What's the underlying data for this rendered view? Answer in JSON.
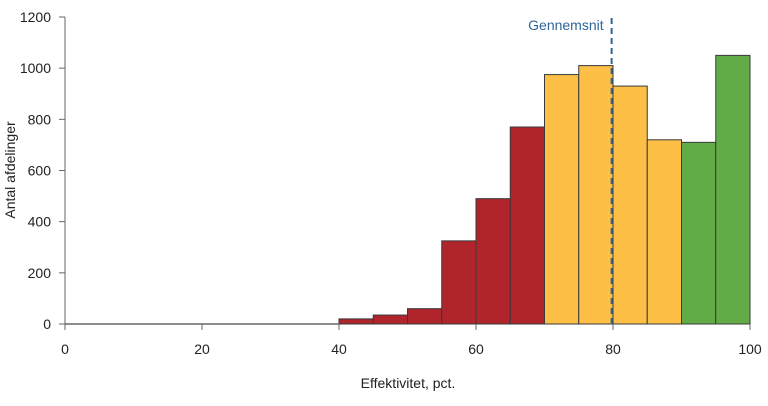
{
  "chart_data": {
    "type": "bar",
    "subtype": "histogram",
    "title": "",
    "xlabel": "Effektivitet, pct.",
    "ylabel": "Antal afdelinger",
    "xlim": [
      0,
      100
    ],
    "ylim": [
      0,
      1200
    ],
    "x_ticks": [
      0,
      20,
      40,
      60,
      80,
      100
    ],
    "y_ticks": [
      0,
      200,
      400,
      600,
      800,
      1000,
      1200
    ],
    "grid": false,
    "legend": null,
    "bin_width": 5,
    "bins": [
      {
        "start": 40,
        "end": 45,
        "value": 20,
        "color": "#b0252c"
      },
      {
        "start": 45,
        "end": 50,
        "value": 35,
        "color": "#b0252c"
      },
      {
        "start": 50,
        "end": 55,
        "value": 60,
        "color": "#b0252c"
      },
      {
        "start": 55,
        "end": 60,
        "value": 325,
        "color": "#b0252c"
      },
      {
        "start": 60,
        "end": 65,
        "value": 490,
        "color": "#b0252c"
      },
      {
        "start": 65,
        "end": 70,
        "value": 770,
        "color": "#b0252c"
      },
      {
        "start": 70,
        "end": 75,
        "value": 975,
        "color": "#fdbf45"
      },
      {
        "start": 75,
        "end": 80,
        "value": 1010,
        "color": "#fdbf45"
      },
      {
        "start": 80,
        "end": 85,
        "value": 930,
        "color": "#fdbf45"
      },
      {
        "start": 85,
        "end": 90,
        "value": 720,
        "color": "#fdbf45"
      },
      {
        "start": 90,
        "end": 95,
        "value": 710,
        "color": "#62ac48"
      },
      {
        "start": 95,
        "end": 100,
        "value": 1050,
        "color": "#62ac48"
      }
    ],
    "categories": [
      "40-45",
      "45-50",
      "50-55",
      "55-60",
      "60-65",
      "65-70",
      "70-75",
      "75-80",
      "80-85",
      "85-90",
      "90-95",
      "95-100"
    ],
    "values": [
      20,
      35,
      60,
      325,
      490,
      770,
      975,
      1010,
      930,
      720,
      710,
      1050
    ],
    "annotations": [
      {
        "type": "vline",
        "x": 79.8,
        "style": "dashed",
        "color": "#2f6699",
        "label": "Gennemsnit"
      }
    ],
    "baseline": {
      "from": 0,
      "to": 40,
      "value": 0
    }
  },
  "colors": {
    "low": "#b0252c",
    "mid": "#fdbf45",
    "high": "#62ac48",
    "outline": "#3a3a3a",
    "axis": "#666666",
    "average_line": "#2f6699"
  }
}
